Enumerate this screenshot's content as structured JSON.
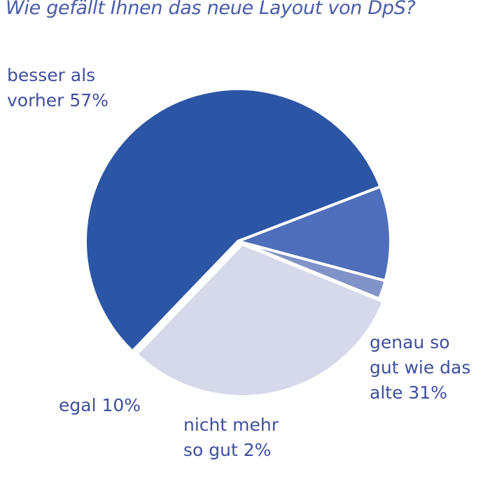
{
  "title": "Wie gefällt Ihnen das neue Layout von DpS?",
  "chart_data": {
    "type": "pie",
    "title": "Wie gefällt Ihnen das neue Layout von DpS?",
    "slices": [
      {
        "name": "besser als vorher",
        "value": 57,
        "color": "#2c56a5",
        "label_lines": [
          "besser als",
          "vorher 57%"
        ]
      },
      {
        "name": "genau so gut wie das alte",
        "value": 31,
        "color": "#d5d9ea",
        "label_lines": [
          "genau so",
          "gut wie das",
          "alte 31%"
        ]
      },
      {
        "name": "nicht mehr so gut",
        "value": 2,
        "color": "#8092c8",
        "label_lines": [
          "nicht mehr",
          "so gut 2%"
        ]
      },
      {
        "name": "egal",
        "value": 10,
        "color": "#4f6ebb",
        "label_lines": [
          "egal 10%"
        ]
      }
    ]
  }
}
